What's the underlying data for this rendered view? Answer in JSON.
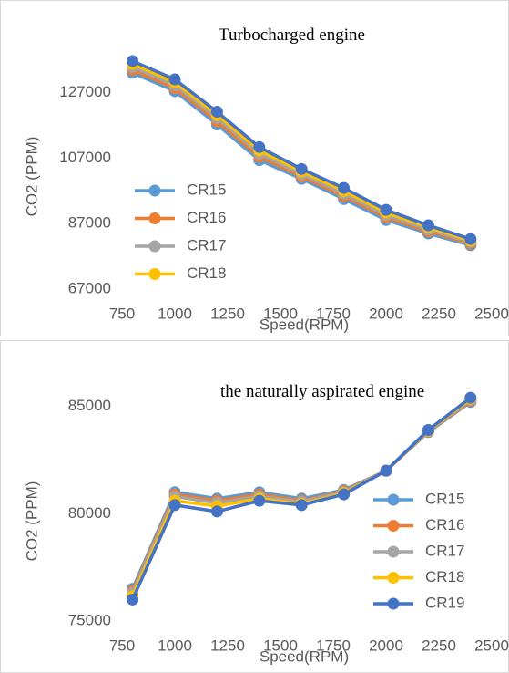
{
  "chart_data": [
    {
      "type": "line",
      "title": "Turbocharged engine",
      "xlabel": "Speed(RPM)",
      "ylabel": "CO2 (PPM)",
      "x": [
        800,
        1000,
        1200,
        1400,
        1600,
        1800,
        2000,
        2200,
        2400
      ],
      "xlim": [
        750,
        2500
      ],
      "xticks": [
        750,
        1000,
        1250,
        1500,
        1750,
        2000,
        2250,
        2500
      ],
      "ylim": [
        67000,
        147000
      ],
      "yticks": [
        67000,
        87000,
        107000,
        127000
      ],
      "legend": "left",
      "series": [
        {
          "name": "CR15",
          "color": "#5b9bd5",
          "values": [
            133100,
            127500,
            117300,
            106400,
            100700,
            94500,
            88100,
            84000,
            80400
          ]
        },
        {
          "name": "CR16",
          "color": "#ed7d31",
          "values": [
            134000,
            128400,
            118300,
            107400,
            101400,
            95400,
            88900,
            84600,
            80900
          ]
        },
        {
          "name": "CR17",
          "color": "#a5a5a5",
          "values": [
            134900,
            129300,
            119300,
            108400,
            102100,
            96200,
            89600,
            85200,
            81400
          ]
        },
        {
          "name": "CR18",
          "color": "#ffc000",
          "values": [
            135800,
            130200,
            120200,
            109400,
            102900,
            97000,
            90400,
            85900,
            81800
          ]
        },
        {
          "color": "#4472c4",
          "values": [
            136700,
            131100,
            121200,
            110400,
            103700,
            97900,
            91200,
            86500,
            82300
          ]
        }
      ]
    },
    {
      "type": "line",
      "title": "the naturally aspirated engine",
      "xlabel": "Speed(RPM)",
      "ylabel": "CO2 (PPM)",
      "x": [
        800,
        1000,
        1200,
        1400,
        1600,
        1800,
        2000,
        2200,
        2400
      ],
      "xlim": [
        750,
        2500
      ],
      "xticks": [
        750,
        1000,
        1250,
        1500,
        1750,
        2000,
        2250,
        2500
      ],
      "ylim": [
        75000,
        86000
      ],
      "yticks": [
        75000,
        80000,
        85000
      ],
      "legend": "right",
      "series": [
        {
          "name": "CR15",
          "color": "#5b9bd5",
          "values": [
            76500,
            81000,
            80700,
            81000,
            80700,
            81100,
            82000,
            83800,
            85200
          ]
        },
        {
          "name": "CR16",
          "color": "#ed7d31",
          "values": [
            76400,
            80900,
            80600,
            80900,
            80600,
            81050,
            82000,
            83820,
            85250
          ]
        },
        {
          "name": "CR17",
          "color": "#a5a5a5",
          "values": [
            76300,
            80800,
            80500,
            80800,
            80550,
            81000,
            82000,
            83840,
            85300
          ]
        },
        {
          "name": "CR18",
          "color": "#ffc000",
          "values": [
            76150,
            80600,
            80350,
            80700,
            80450,
            80950,
            82000,
            83870,
            85350
          ]
        },
        {
          "name": "CR19",
          "color": "#4472c4",
          "values": [
            76000,
            80400,
            80100,
            80600,
            80400,
            80900,
            82000,
            83900,
            85400
          ]
        }
      ]
    }
  ]
}
